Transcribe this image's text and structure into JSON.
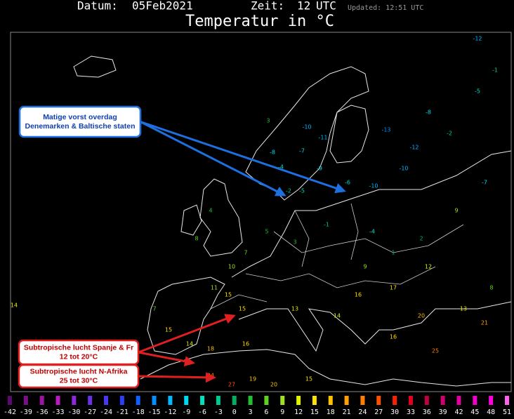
{
  "header": {
    "date_label": "Datum:",
    "date": "05Feb2021",
    "time_label": "Zeit:",
    "time": "12",
    "time_unit": "UTC",
    "updated": "Updated: 12:51 UTC",
    "title": "Temperatur in °C"
  },
  "annotations": [
    {
      "lines": [
        "Matige vorst overdag",
        "Denemarken & Baltische staten"
      ],
      "color": "#1e6fe0"
    },
    {
      "lines": [
        "Subtropische lucht Spanje & Fr",
        "12 tot 20°C"
      ],
      "color": "#e02020"
    },
    {
      "lines": [
        "Subtropische lucht N-Afrika",
        "25 tot 30°C"
      ],
      "color": "#e02020"
    }
  ],
  "stations": [
    -10,
    -11,
    -8,
    -7,
    -9,
    -4,
    3,
    -2,
    -5,
    -6,
    -10,
    -10,
    -12,
    -13,
    -8,
    -2,
    -5,
    -7,
    -1,
    -12,
    -1,
    -4,
    3,
    5,
    7,
    10,
    4,
    8,
    2,
    1,
    9,
    12,
    9,
    15,
    15,
    11,
    7,
    15,
    14,
    18,
    16,
    13,
    14,
    16,
    17,
    20,
    13,
    21,
    24,
    27,
    19,
    20,
    15,
    16,
    25,
    8,
    14
  ],
  "scale": {
    "ticks": [
      -42,
      -39,
      -36,
      -33,
      -30,
      -27,
      -24,
      -21,
      -18,
      -15,
      -12,
      -9,
      -6,
      -3,
      0,
      3,
      6,
      9,
      12,
      15,
      18,
      21,
      24,
      27,
      30,
      33,
      36,
      39,
      42,
      45,
      48,
      51
    ],
    "colors": [
      "#5a0a6e",
      "#7a1088",
      "#9b14a4",
      "#b81cc0",
      "#8a2ad8",
      "#6a30e8",
      "#4a38f0",
      "#2a40f8",
      "#1060ff",
      "#0090ff",
      "#00b8ff",
      "#00d8f0",
      "#00e0c0",
      "#00c890",
      "#00b060",
      "#20c030",
      "#60d020",
      "#a0e020",
      "#e0f000",
      "#ffe000",
      "#ffc000",
      "#ffa000",
      "#ff8000",
      "#ff5000",
      "#ff2000",
      "#e00020",
      "#c00040",
      "#d00070",
      "#e000a0",
      "#f000c8",
      "#ff00e0",
      "#ff60f0"
    ]
  }
}
